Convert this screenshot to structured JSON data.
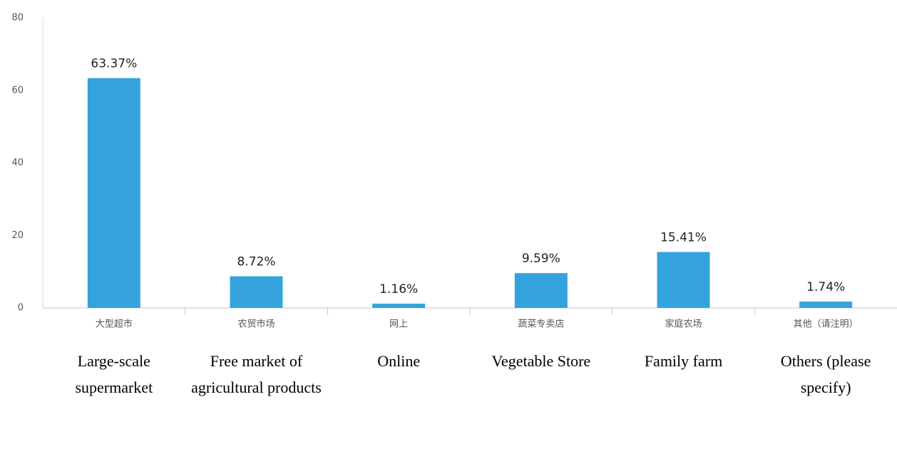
{
  "chart_data": {
    "type": "bar",
    "categories": [
      "大型超市",
      "农贸市场",
      "网上",
      "蔬菜专卖店",
      "家庭农场",
      "其他（请注明）"
    ],
    "translations": [
      "Large-scale supermarket",
      "Free market of agricultural products",
      "Online",
      "Vegetable Store",
      "Family farm",
      "Others (please specify)"
    ],
    "values": [
      63.37,
      8.72,
      1.16,
      9.59,
      15.41,
      1.74
    ],
    "value_labels": [
      "63.37%",
      "8.72%",
      "1.16%",
      "9.59%",
      "15.41%",
      "1.74%"
    ],
    "color": "#34a3dc",
    "ylim": [
      0,
      80
    ],
    "yticks": [
      0,
      20,
      40,
      60,
      80
    ],
    "grid": false
  }
}
